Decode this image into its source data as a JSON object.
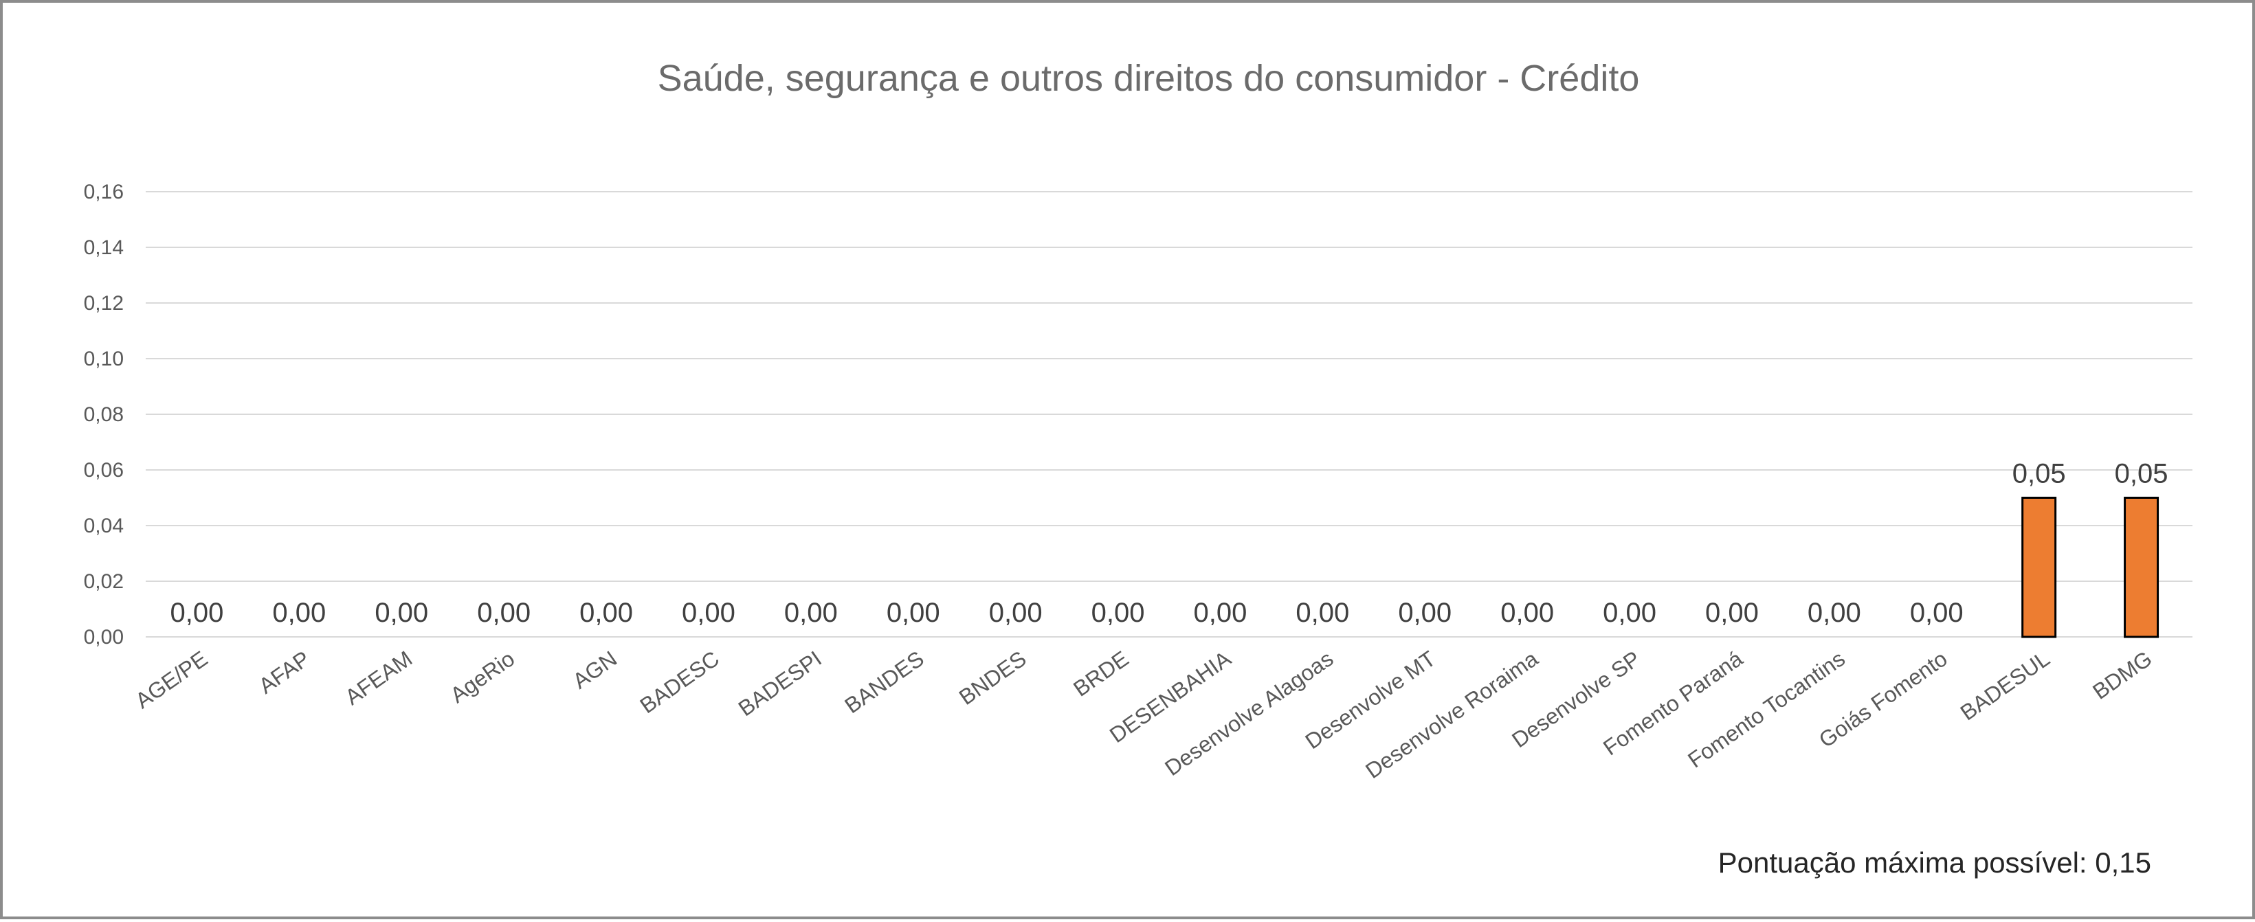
{
  "chart_data": {
    "type": "bar",
    "title": "Saúde, segurança e outros direitos do consumidor - Crédito",
    "xlabel": "",
    "ylabel": "",
    "categories": [
      "AGE/PE",
      "AFAP",
      "AFEAM",
      "AgeRio",
      "AGN",
      "BADESC",
      "BADESPI",
      "BANDES",
      "BNDES",
      "BRDE",
      "DESENBAHIA",
      "Desenvolve Alagoas",
      "Desenvolve MT",
      "Desenvolve Roraima",
      "Desenvolve SP",
      "Fomento Paraná",
      "Fomento Tocantins",
      "Goiás Fomento",
      "BADESUL",
      "BDMG"
    ],
    "values": [
      0,
      0,
      0,
      0,
      0,
      0,
      0,
      0,
      0,
      0,
      0,
      0,
      0,
      0,
      0,
      0,
      0,
      0,
      0.05,
      0.05
    ],
    "data_labels": [
      "0,00",
      "0,00",
      "0,00",
      "0,00",
      "0,00",
      "0,00",
      "0,00",
      "0,00",
      "0,00",
      "0,00",
      "0,00",
      "0,00",
      "0,00",
      "0,00",
      "0,00",
      "0,00",
      "0,00",
      "0,00",
      "0,05",
      "0,05"
    ],
    "ylim": [
      0,
      0.16
    ],
    "y_ticks": [
      0,
      0.02,
      0.04,
      0.06,
      0.08,
      0.1,
      0.12,
      0.14,
      0.16
    ],
    "y_tick_labels": [
      "0,00",
      "0,02",
      "0,04",
      "0,06",
      "0,08",
      "0,10",
      "0,12",
      "0,14",
      "0,16"
    ],
    "grid": true,
    "legend": "none",
    "bar_color": "#ed7d31",
    "bar_edge_color": "#000000",
    "annotation": "Pontuação máxima possível:  0,15"
  }
}
